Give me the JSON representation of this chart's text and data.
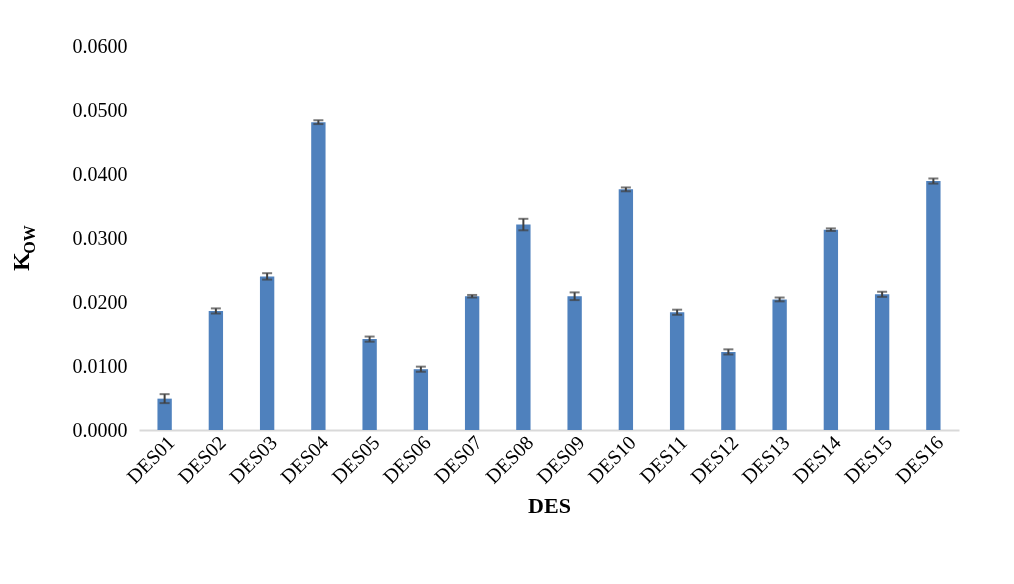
{
  "chart_data": {
    "type": "bar",
    "xlabel": "DES",
    "ylabel": "K$_{OW}$",
    "categories": [
      "DES01",
      "DES02",
      "DES03",
      "DES04",
      "DES05",
      "DES06",
      "DES07",
      "DES08",
      "DES09",
      "DES10",
      "DES11",
      "DES12",
      "DES13",
      "DES14",
      "DES15",
      "DES16"
    ],
    "values": [
      0.0049,
      0.0186,
      0.024,
      0.0481,
      0.0142,
      0.0095,
      0.0209,
      0.0321,
      0.0209,
      0.0376,
      0.0184,
      0.0122,
      0.0204,
      0.0313,
      0.0212,
      0.0389
    ],
    "errors": [
      0.0007,
      0.0004,
      0.0005,
      0.0003,
      0.0004,
      0.0004,
      0.0002,
      0.0009,
      0.0006,
      0.0003,
      0.0004,
      0.0004,
      0.0003,
      0.0002,
      0.0004,
      0.0004
    ],
    "color": "#4f81bd",
    "ylim": [
      0,
      0.06
    ],
    "yticks": [
      {
        "value": 0,
        "label": "0.0000"
      },
      {
        "value": 0.01,
        "label": "0.0100"
      },
      {
        "value": 0.02,
        "label": "0.0200"
      },
      {
        "value": 0.03,
        "label": "0.0300"
      },
      {
        "value": 0.04,
        "label": "0.0400"
      },
      {
        "value": 0.05,
        "label": "0.0500"
      },
      {
        "value": 0.06,
        "label": "0.0600"
      }
    ],
    "grid": false
  }
}
